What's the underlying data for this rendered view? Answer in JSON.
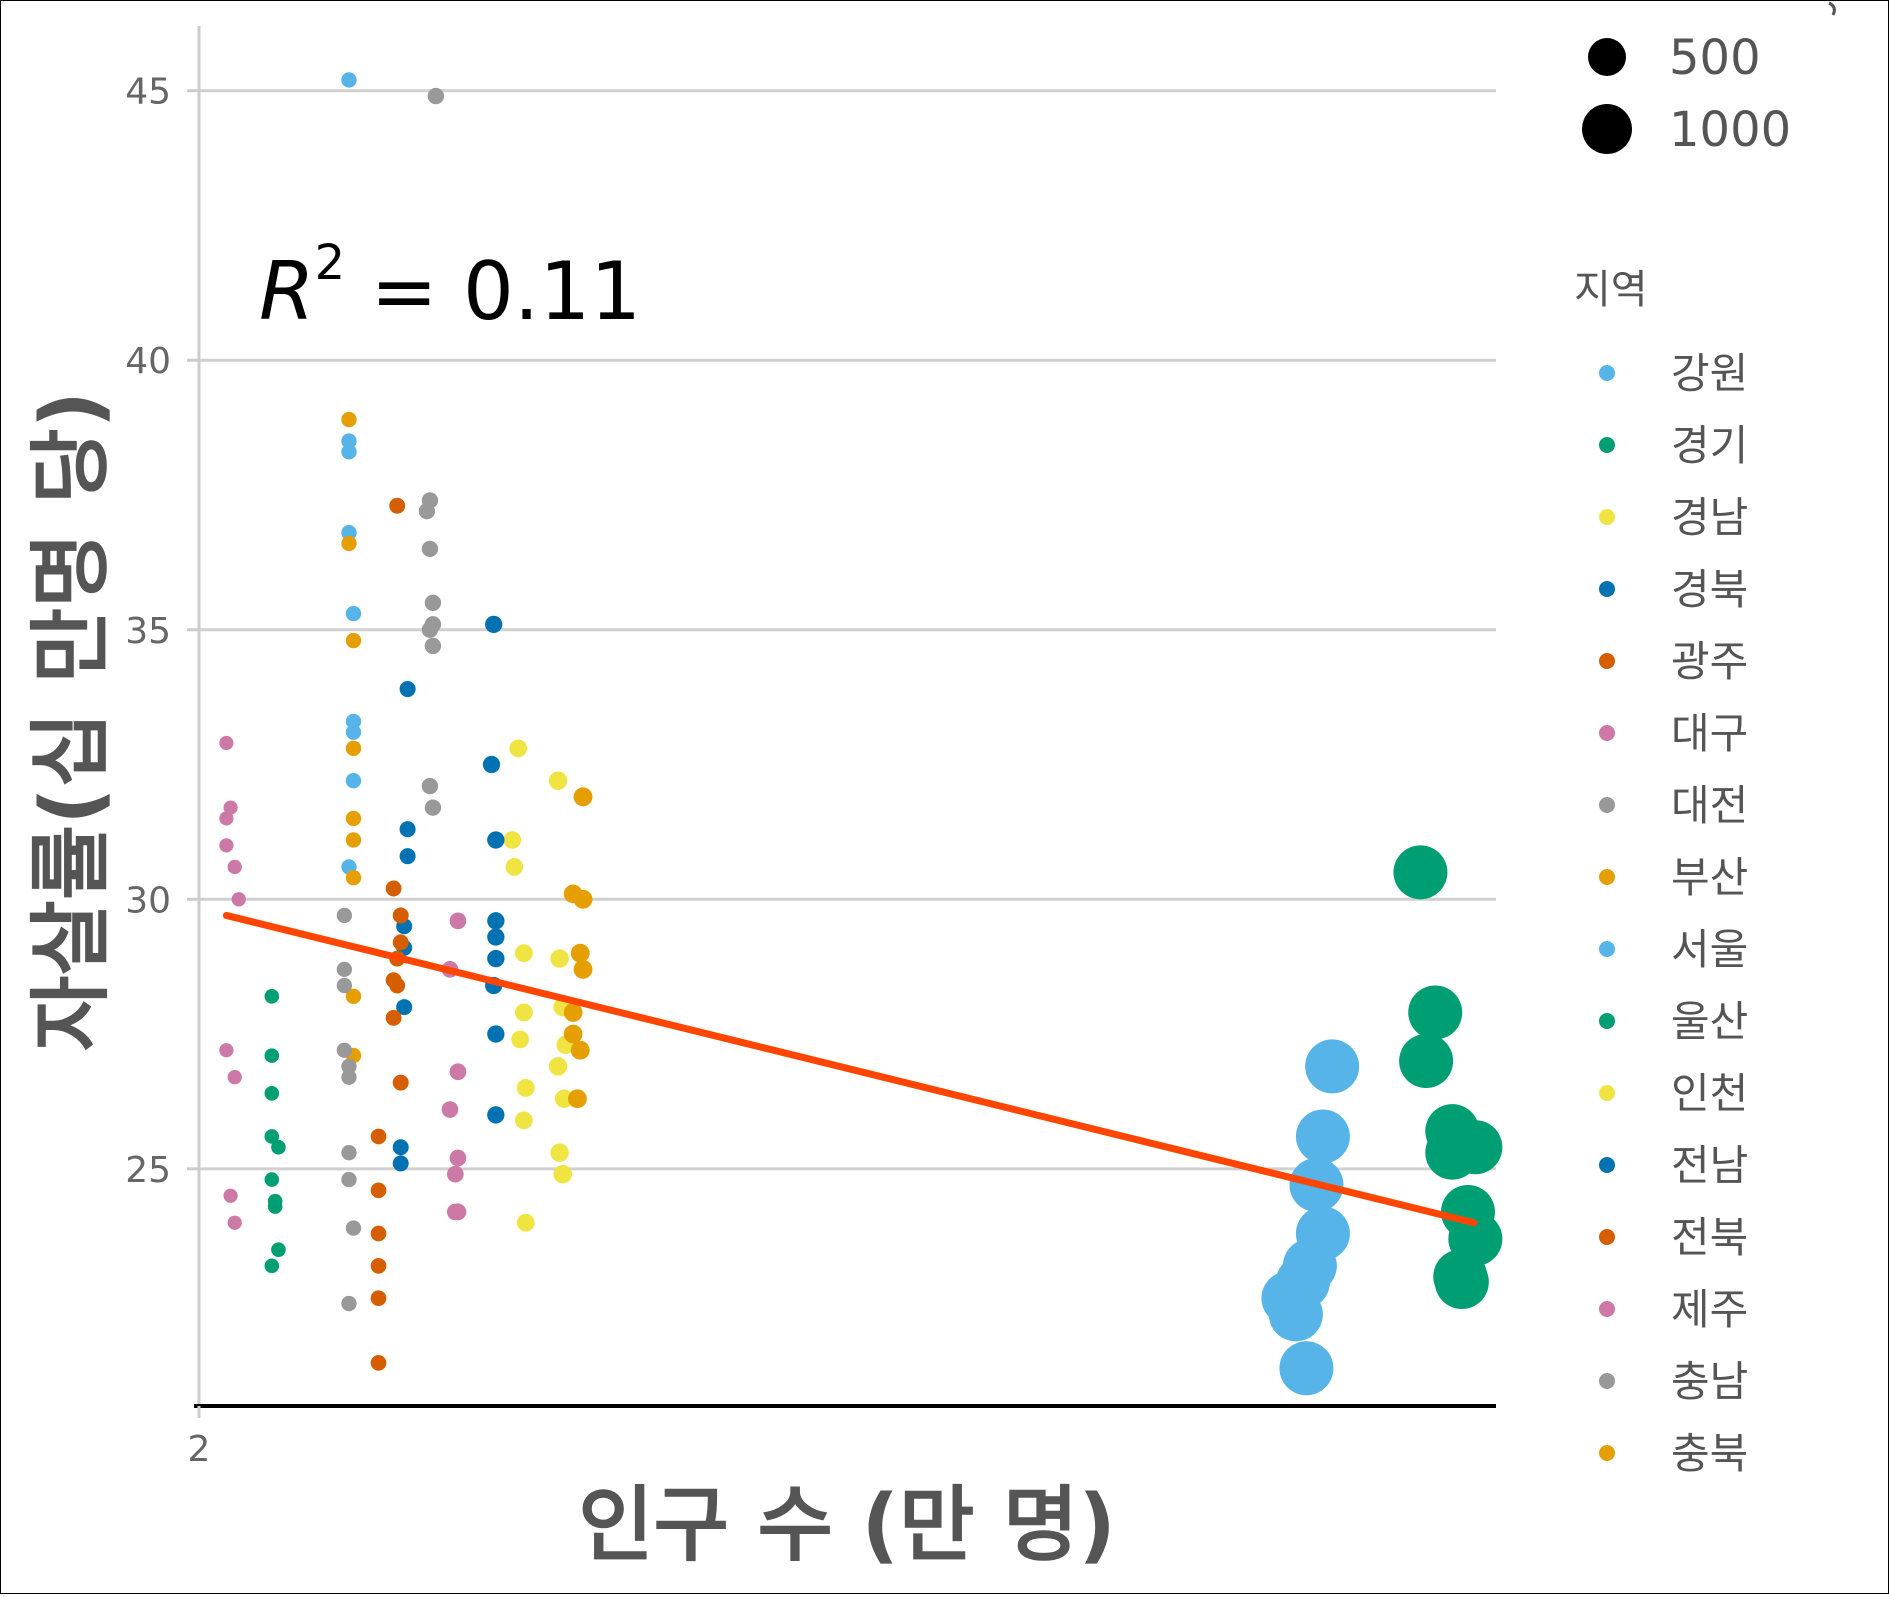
{
  "chart_data": {
    "type": "scatter",
    "xlabel": "인구 수 (만 명)",
    "ylabel": "자살률(십 만명 당)",
    "x_tick_labels": [
      "2"
    ],
    "y_ticks": [
      25,
      30,
      35,
      40,
      45
    ],
    "ylim": [
      20.6,
      46.2
    ],
    "x_scale": "log",
    "grid": "horizontal major",
    "annotation": {
      "r2_label": "R",
      "r2_exp": "2",
      "r2_text": " = 0.11",
      "r2_value": 0.11
    },
    "legend_region_title": "지역",
    "legend_size_entries": [
      {
        "label": "500",
        "value": 500
      },
      {
        "label": "1000",
        "value": 1000
      }
    ],
    "legend_position": "right",
    "trend_line": {
      "color": "#FF4500",
      "start": {
        "pop": 2.3,
        "rate": 29.7
      },
      "end": {
        "pop": 1340,
        "rate": 24.0
      }
    },
    "series": [
      {
        "name": "강원",
        "color": "#56B4E9",
        "points": [
          [
            4.3,
            45.2
          ],
          [
            4.3,
            38.5
          ],
          [
            4.3,
            38.3
          ],
          [
            4.3,
            36.8
          ],
          [
            4.4,
            35.3
          ],
          [
            4.4,
            33.3
          ],
          [
            4.4,
            33.1
          ],
          [
            4.4,
            32.2
          ],
          [
            4.3,
            30.6
          ]
        ]
      },
      {
        "name": "경기",
        "color": "#009E73",
        "points": [
          [
            1200,
            25.7
          ],
          [
            1200,
            25.3
          ],
          [
            1300,
            24.2
          ],
          [
            1250,
            23.0
          ],
          [
            1260,
            22.9
          ],
          [
            1350,
            23.7
          ],
          [
            1350,
            25.4
          ],
          [
            1050,
            27.0
          ],
          [
            1100,
            27.9
          ],
          [
            1020,
            30.5
          ]
        ]
      },
      {
        "name": "경남",
        "color": "#F0E442",
        "points": [
          [
            12.5,
            32.2
          ],
          [
            10.2,
            32.8
          ],
          [
            9.9,
            31.1
          ],
          [
            10.0,
            30.6
          ],
          [
            10.5,
            29.0
          ],
          [
            12.6,
            28.9
          ],
          [
            12.8,
            28.0
          ],
          [
            10.5,
            27.9
          ],
          [
            10.3,
            27.4
          ],
          [
            13.0,
            27.3
          ],
          [
            12.5,
            26.9
          ],
          [
            10.6,
            26.5
          ],
          [
            12.9,
            26.3
          ],
          [
            10.5,
            25.9
          ],
          [
            12.6,
            25.3
          ],
          [
            12.8,
            24.9
          ],
          [
            10.6,
            24.0
          ]
        ]
      },
      {
        "name": "경북",
        "color": "#0072B2",
        "points": [
          [
            9.0,
            35.1
          ],
          [
            5.8,
            33.9
          ],
          [
            8.9,
            32.5
          ],
          [
            9.1,
            31.1
          ],
          [
            5.8,
            31.3
          ],
          [
            5.8,
            30.8
          ],
          [
            9.1,
            29.6
          ],
          [
            9.1,
            29.3
          ],
          [
            5.7,
            29.5
          ],
          [
            5.7,
            29.1
          ],
          [
            9.1,
            28.9
          ],
          [
            9.0,
            28.4
          ],
          [
            5.7,
            28.0
          ],
          [
            9.1,
            27.5
          ],
          [
            9.1,
            26.0
          ],
          [
            5.6,
            25.4
          ],
          [
            5.6,
            25.1
          ]
        ]
      },
      {
        "name": "광주",
        "color": "#D55E00",
        "points": [
          [
            5.5,
            37.3
          ],
          [
            5.4,
            30.2
          ],
          [
            5.6,
            29.7
          ],
          [
            5.6,
            29.2
          ],
          [
            5.5,
            28.9
          ],
          [
            5.4,
            28.5
          ],
          [
            5.5,
            28.4
          ],
          [
            5.4,
            27.8
          ],
          [
            5.6,
            26.6
          ],
          [
            5.0,
            25.6
          ],
          [
            5.0,
            24.6
          ],
          [
            5.0,
            23.8
          ],
          [
            5.0,
            23.2
          ],
          [
            5.0,
            22.6
          ],
          [
            5.0,
            21.4
          ]
        ]
      },
      {
        "name": "대구",
        "color": "#CC79A7",
        "points": [
          [
            2.3,
            32.9
          ],
          [
            2.35,
            31.7
          ],
          [
            2.3,
            31.5
          ],
          [
            2.3,
            31.0
          ],
          [
            2.4,
            30.6
          ],
          [
            2.45,
            30.0
          ],
          [
            2.3,
            27.2
          ],
          [
            2.4,
            26.7
          ],
          [
            2.35,
            24.5
          ],
          [
            2.4,
            24.0
          ]
        ]
      },
      {
        "name": "대전",
        "color": "#999999",
        "points": [
          [
            6.5,
            37.4
          ],
          [
            6.4,
            37.2
          ],
          [
            6.5,
            36.5
          ],
          [
            6.6,
            35.5
          ],
          [
            6.6,
            35.1
          ],
          [
            6.5,
            35.0
          ],
          [
            6.6,
            34.7
          ],
          [
            6.5,
            32.1
          ],
          [
            6.6,
            31.7
          ],
          [
            6.7,
            44.9
          ]
        ]
      },
      {
        "name": "부산",
        "color": "#E69F00",
        "points": [
          [
            4.3,
            38.9
          ],
          [
            4.3,
            36.6
          ],
          [
            4.4,
            34.8
          ],
          [
            4.4,
            32.8
          ],
          [
            4.4,
            31.5
          ],
          [
            4.4,
            31.1
          ],
          [
            4.4,
            30.4
          ],
          [
            4.4,
            28.2
          ],
          [
            4.4,
            27.1
          ],
          [
            14.2,
            31.9
          ],
          [
            13.5,
            30.1
          ],
          [
            14.2,
            30.0
          ],
          [
            14.0,
            29.0
          ],
          [
            14.2,
            28.7
          ],
          [
            13.5,
            27.9
          ],
          [
            13.5,
            27.5
          ],
          [
            14.0,
            27.2
          ],
          [
            13.8,
            26.3
          ]
        ]
      },
      {
        "name": "서울",
        "color": "#56B4E9",
        "points": [
          [
            650,
            26.9
          ],
          [
            620,
            25.6
          ],
          [
            600,
            24.7
          ],
          [
            620,
            23.8
          ],
          [
            580,
            23.2
          ],
          [
            560,
            22.9
          ],
          [
            520,
            22.6
          ],
          [
            540,
            22.3
          ],
          [
            570,
            21.3
          ]
        ]
      },
      {
        "name": "울산",
        "color": "#009E73",
        "points": [
          [
            2.9,
            28.2
          ],
          [
            2.9,
            27.1
          ],
          [
            2.9,
            26.4
          ],
          [
            2.9,
            25.6
          ],
          [
            3.0,
            25.4
          ],
          [
            2.9,
            24.8
          ],
          [
            2.95,
            24.4
          ],
          [
            2.95,
            24.3
          ],
          [
            3.0,
            23.5
          ],
          [
            2.9,
            23.2
          ]
        ]
      },
      {
        "name": "인천",
        "color": "#F0E442",
        "points": []
      },
      {
        "name": "전남",
        "color": "#0072B2",
        "points": []
      },
      {
        "name": "전북",
        "color": "#D55E00",
        "points": []
      },
      {
        "name": "제주",
        "color": "#CC79A7",
        "points": [
          [
            7.5,
            29.6
          ],
          [
            7.2,
            28.7
          ],
          [
            7.5,
            26.8
          ],
          [
            7.2,
            26.1
          ],
          [
            7.5,
            25.2
          ],
          [
            7.4,
            24.9
          ],
          [
            7.5,
            24.2
          ],
          [
            7.4,
            24.2
          ]
        ]
      },
      {
        "name": "충남",
        "color": "#999999",
        "points": [
          [
            4.2,
            29.7
          ],
          [
            4.2,
            28.7
          ],
          [
            4.2,
            28.4
          ],
          [
            4.2,
            27.2
          ],
          [
            4.3,
            26.9
          ],
          [
            4.3,
            26.7
          ],
          [
            4.3,
            25.3
          ],
          [
            4.3,
            24.8
          ],
          [
            4.4,
            23.9
          ],
          [
            4.3,
            22.5
          ]
        ]
      },
      {
        "name": "충북",
        "color": "#E69F00",
        "points": []
      }
    ]
  }
}
